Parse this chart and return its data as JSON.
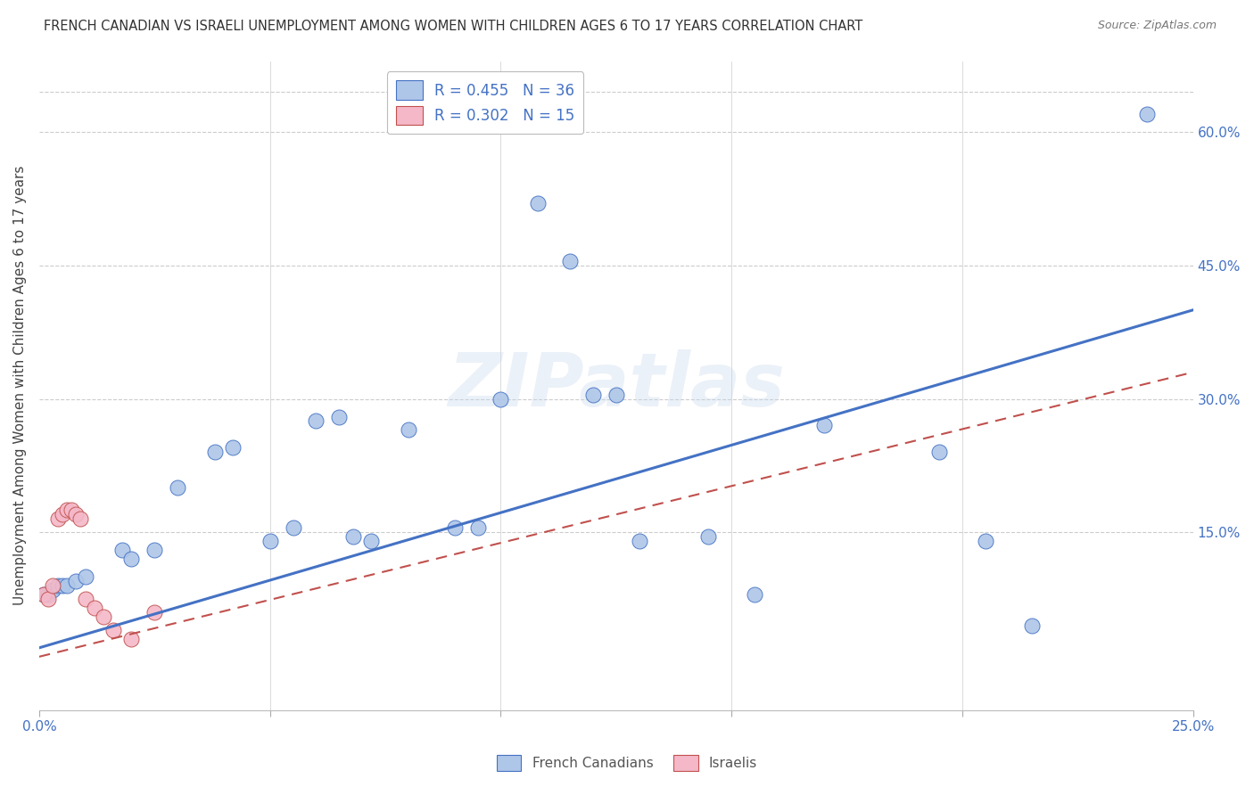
{
  "title": "FRENCH CANADIAN VS ISRAELI UNEMPLOYMENT AMONG WOMEN WITH CHILDREN AGES 6 TO 17 YEARS CORRELATION CHART",
  "source": "Source: ZipAtlas.com",
  "ylabel": "Unemployment Among Women with Children Ages 6 to 17 years",
  "xlim": [
    0.0,
    0.25
  ],
  "ylim": [
    -0.05,
    0.68
  ],
  "xticks": [
    0.0,
    0.05,
    0.1,
    0.15,
    0.2,
    0.25
  ],
  "yticks_right": [
    0.15,
    0.3,
    0.45,
    0.6
  ],
  "ytick_labels_right": [
    "15.0%",
    "30.0%",
    "45.0%",
    "60.0%"
  ],
  "blue_R": 0.455,
  "blue_N": 36,
  "pink_R": 0.302,
  "pink_N": 15,
  "blue_color": "#aec6e8",
  "blue_line_color": "#4472c4",
  "pink_color": "#f4b8c8",
  "pink_line_color": "#c0504d",
  "watermark": "ZIPatlas",
  "blue_trend_x0": 0.0,
  "blue_trend_y0": 0.02,
  "blue_trend_x1": 0.25,
  "blue_trend_y1": 0.4,
  "pink_trend_x0": 0.0,
  "pink_trend_y0": 0.01,
  "pink_trend_x1": 0.25,
  "pink_trend_y1": 0.33,
  "blue_points_x": [
    0.001,
    0.002,
    0.003,
    0.004,
    0.005,
    0.006,
    0.008,
    0.01,
    0.018,
    0.02,
    0.025,
    0.03,
    0.038,
    0.042,
    0.05,
    0.055,
    0.06,
    0.065,
    0.068,
    0.072,
    0.08,
    0.09,
    0.095,
    0.1,
    0.108,
    0.115,
    0.12,
    0.125,
    0.13,
    0.145,
    0.155,
    0.17,
    0.195,
    0.205,
    0.215,
    0.24
  ],
  "blue_points_y": [
    0.08,
    0.08,
    0.085,
    0.09,
    0.09,
    0.09,
    0.095,
    0.1,
    0.13,
    0.12,
    0.13,
    0.2,
    0.24,
    0.245,
    0.14,
    0.155,
    0.275,
    0.28,
    0.145,
    0.14,
    0.265,
    0.155,
    0.155,
    0.3,
    0.52,
    0.455,
    0.305,
    0.305,
    0.14,
    0.145,
    0.08,
    0.27,
    0.24,
    0.14,
    0.045,
    0.62
  ],
  "pink_points_x": [
    0.001,
    0.002,
    0.003,
    0.004,
    0.005,
    0.006,
    0.007,
    0.008,
    0.009,
    0.01,
    0.012,
    0.014,
    0.016,
    0.02,
    0.025
  ],
  "pink_points_y": [
    0.08,
    0.075,
    0.09,
    0.165,
    0.17,
    0.175,
    0.175,
    0.17,
    0.165,
    0.075,
    0.065,
    0.055,
    0.04,
    0.03,
    0.06
  ]
}
